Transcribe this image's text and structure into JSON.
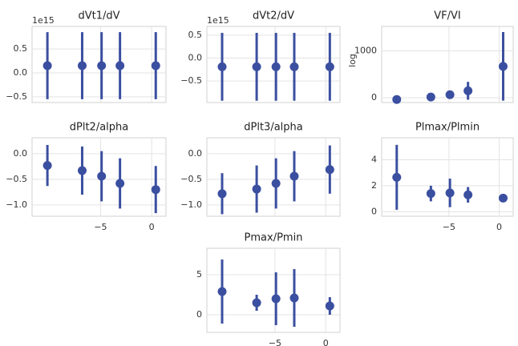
{
  "chart_data": [
    {
      "type": "errorbar",
      "title": "dVt1/dV",
      "offset_label": "1e15",
      "color": "#3b4fa0",
      "grid": true,
      "show_xtick_labels": false,
      "x": [
        -10.2,
        -6.8,
        -4.9,
        -3.1,
        0.4
      ],
      "values": [
        0.15,
        0.15,
        0.15,
        0.15,
        0.15
      ],
      "errors": [
        0.7,
        0.7,
        0.7,
        0.7,
        0.7
      ],
      "xlim": [
        -11.7,
        1.4
      ],
      "xticks": [
        {
          "value": -5,
          "label": "−5"
        },
        0
      ],
      "ylim": [
        -0.62,
        0.97
      ],
      "yticks": [
        {
          "value": -0.5,
          "label": "−0.5"
        },
        {
          "value": 0,
          "label": "0.0"
        },
        0.5
      ]
    },
    {
      "type": "errorbar",
      "title": "dVt2/dV",
      "offset_label": "1e15",
      "color": "#3b4fa0",
      "grid": true,
      "show_xtick_labels": false,
      "x": [
        -10.2,
        -6.8,
        -4.9,
        -3.1,
        0.4
      ],
      "values": [
        -0.19,
        -0.19,
        -0.19,
        -0.19,
        -0.19
      ],
      "errors": [
        0.74,
        0.74,
        0.74,
        0.74,
        0.74
      ],
      "xlim": [
        -11.7,
        1.4
      ],
      "xticks": [
        {
          "value": -5,
          "label": "−5"
        },
        0
      ],
      "ylim": [
        -0.97,
        0.69
      ],
      "yticks": [
        {
          "value": -0.5,
          "label": "−0.5"
        },
        {
          "value": 0,
          "label": "0.0"
        },
        0.5
      ]
    },
    {
      "type": "errorbar",
      "title": "VF/VI",
      "ylabel": "log",
      "color": "#3b4fa0",
      "grid": true,
      "show_xtick_labels": false,
      "x": [
        -10.2,
        -6.8,
        -4.9,
        -3.1,
        0.4
      ],
      "values": [
        -35,
        17,
        67,
        150,
        670
      ],
      "errors": [
        10,
        20,
        30,
        190,
        730
      ],
      "xlim": [
        -11.7,
        1.4
      ],
      "xticks": [
        {
          "value": -5,
          "label": "−5"
        },
        0
      ],
      "ylim": [
        -100,
        1520
      ],
      "yticks": [
        0,
        1000
      ]
    },
    {
      "type": "errorbar",
      "title": "dPlt2/alpha",
      "color": "#3b4fa0",
      "grid": true,
      "show_xtick_labels": true,
      "x": [
        -10.2,
        -6.8,
        -4.9,
        -3.1,
        0.4
      ],
      "values": [
        -0.23,
        -0.33,
        -0.44,
        -0.58,
        -0.7
      ],
      "errors": [
        0.4,
        0.47,
        0.49,
        0.49,
        0.46
      ],
      "xlim": [
        -11.7,
        1.4
      ],
      "xticks": [
        {
          "value": -5,
          "label": "−5"
        },
        0
      ],
      "ylim": [
        -1.22,
        0.31
      ],
      "yticks": [
        {
          "value": -1,
          "label": "−1.0"
        },
        {
          "value": -0.5,
          "label": "−0.5"
        },
        {
          "value": 0,
          "label": "0.0"
        }
      ]
    },
    {
      "type": "errorbar",
      "title": "dPlt3/alpha",
      "color": "#3b4fa0",
      "grid": true,
      "show_xtick_labels": false,
      "x": [
        -10.2,
        -6.8,
        -4.9,
        -3.1,
        0.4
      ],
      "values": [
        -0.78,
        -0.69,
        -0.58,
        -0.44,
        -0.31
      ],
      "errors": [
        0.4,
        0.46,
        0.49,
        0.49,
        0.47
      ],
      "xlim": [
        -11.7,
        1.4
      ],
      "xticks": [
        {
          "value": -5,
          "label": "−5"
        },
        0
      ],
      "ylim": [
        -1.22,
        0.31
      ],
      "yticks": [
        {
          "value": -1,
          "label": "−1.0"
        },
        {
          "value": -0.5,
          "label": "−0.5"
        },
        {
          "value": 0,
          "label": "0.0"
        }
      ]
    },
    {
      "type": "errorbar",
      "title": "Plmax/Plmin",
      "color": "#3b4fa0",
      "grid": true,
      "show_xtick_labels": true,
      "x": [
        -10.2,
        -6.8,
        -4.9,
        -3.1,
        0.4
      ],
      "values": [
        2.65,
        1.4,
        1.45,
        1.3,
        1.05
      ],
      "errors": [
        2.5,
        0.6,
        1.1,
        0.6,
        0.15
      ],
      "xlim": [
        -11.7,
        1.4
      ],
      "xticks": [
        {
          "value": -5,
          "label": "−5"
        },
        0
      ],
      "ylim": [
        -0.35,
        5.7
      ],
      "yticks": [
        0,
        2,
        4
      ]
    },
    {
      "type": "errorbar",
      "title": "Pmax/Pmin",
      "color": "#3b4fa0",
      "grid": true,
      "show_xtick_labels": true,
      "x": [
        -10.2,
        -6.8,
        -4.9,
        -3.1,
        0.4
      ],
      "values": [
        2.9,
        1.5,
        2.0,
        2.1,
        1.1
      ],
      "errors": [
        4.0,
        1.0,
        3.3,
        3.6,
        1.1
      ],
      "xlim": [
        -11.7,
        1.4
      ],
      "xticks": [
        {
          "value": -5,
          "label": "−5"
        },
        0
      ],
      "ylim": [
        -2.2,
        8.3
      ],
      "yticks": [
        0,
        5
      ]
    }
  ]
}
